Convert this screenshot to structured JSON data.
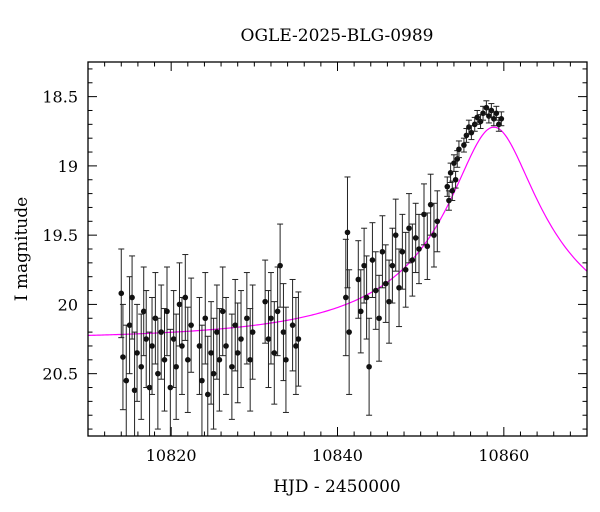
{
  "chart_data": {
    "type": "scatter",
    "title": "OGLE-2025-BLG-0989",
    "xlabel": "HJD - 2450000",
    "ylabel": "I magnitude",
    "xlim": [
      10810,
      10870
    ],
    "ylim": [
      18.25,
      20.95
    ],
    "y_inverted": true,
    "grid": false,
    "x_ticks": [
      10820,
      10840,
      10860
    ],
    "x_tick_labels": [
      "10820",
      "10840",
      "10860"
    ],
    "y_ticks": [
      18.5,
      19,
      19.5,
      20,
      20.5
    ],
    "y_tick_labels": [
      "18.5",
      "19",
      "19.5",
      "20",
      "20.5"
    ],
    "colors": {
      "points": "#111111",
      "model": "#ff00ff",
      "axes": "#000000"
    },
    "series": [
      {
        "kind": "points_with_errorbars",
        "points": [
          {
            "x": 10814.0,
            "y": 19.92,
            "err": 0.32
          },
          {
            "x": 10814.2,
            "y": 20.38,
            "err": 0.38
          },
          {
            "x": 10814.6,
            "y": 20.55,
            "err": 0.4
          },
          {
            "x": 10815.0,
            "y": 20.15,
            "err": 0.35
          },
          {
            "x": 10815.3,
            "y": 19.95,
            "err": 0.3
          },
          {
            "x": 10815.6,
            "y": 20.62,
            "err": 0.42
          },
          {
            "x": 10815.9,
            "y": 20.35,
            "err": 0.35
          },
          {
            "x": 10816.4,
            "y": 20.45,
            "err": 0.38
          },
          {
            "x": 10816.7,
            "y": 20.05,
            "err": 0.32
          },
          {
            "x": 10817.0,
            "y": 20.25,
            "err": 0.35
          },
          {
            "x": 10817.4,
            "y": 20.6,
            "err": 0.4
          },
          {
            "x": 10817.7,
            "y": 20.3,
            "err": 0.35
          },
          {
            "x": 10818.1,
            "y": 20.1,
            "err": 0.33
          },
          {
            "x": 10818.4,
            "y": 20.5,
            "err": 0.4
          },
          {
            "x": 10818.8,
            "y": 20.2,
            "err": 0.34
          },
          {
            "x": 10819.2,
            "y": 20.4,
            "err": 0.37
          },
          {
            "x": 10819.5,
            "y": 20.05,
            "err": 0.32
          },
          {
            "x": 10819.9,
            "y": 20.6,
            "err": 0.42
          },
          {
            "x": 10820.3,
            "y": 20.25,
            "err": 0.35
          },
          {
            "x": 10820.6,
            "y": 20.45,
            "err": 0.38
          },
          {
            "x": 10821.0,
            "y": 20.0,
            "err": 0.3
          },
          {
            "x": 10821.3,
            "y": 20.3,
            "err": 0.35
          },
          {
            "x": 10821.7,
            "y": 19.95,
            "err": 0.31
          },
          {
            "x": 10822.0,
            "y": 20.4,
            "err": 0.38
          },
          {
            "x": 10822.4,
            "y": 20.15,
            "err": 0.34
          },
          {
            "x": 10823.4,
            "y": 20.3,
            "err": 0.35
          },
          {
            "x": 10823.7,
            "y": 20.55,
            "err": 0.4
          },
          {
            "x": 10824.1,
            "y": 20.1,
            "err": 0.33
          },
          {
            "x": 10824.4,
            "y": 20.65,
            "err": 0.42
          },
          {
            "x": 10824.8,
            "y": 20.35,
            "err": 0.37
          },
          {
            "x": 10825.1,
            "y": 20.5,
            "err": 0.4
          },
          {
            "x": 10825.5,
            "y": 20.2,
            "err": 0.34
          },
          {
            "x": 10825.8,
            "y": 20.4,
            "err": 0.37
          },
          {
            "x": 10826.2,
            "y": 20.05,
            "err": 0.32
          },
          {
            "x": 10826.6,
            "y": 20.3,
            "err": 0.35
          },
          {
            "x": 10827.3,
            "y": 20.45,
            "err": 0.38
          },
          {
            "x": 10827.7,
            "y": 20.15,
            "err": 0.33
          },
          {
            "x": 10828.0,
            "y": 20.35,
            "err": 0.36
          },
          {
            "x": 10828.4,
            "y": 20.25,
            "err": 0.35
          },
          {
            "x": 10829.1,
            "y": 20.1,
            "err": 0.33
          },
          {
            "x": 10829.5,
            "y": 20.4,
            "err": 0.37
          },
          {
            "x": 10829.8,
            "y": 20.2,
            "err": 0.34
          },
          {
            "x": 10831.3,
            "y": 19.98,
            "err": 0.3
          },
          {
            "x": 10831.7,
            "y": 20.25,
            "err": 0.35
          },
          {
            "x": 10832.0,
            "y": 20.1,
            "err": 0.33
          },
          {
            "x": 10832.4,
            "y": 20.35,
            "err": 0.37
          },
          {
            "x": 10832.8,
            "y": 20.05,
            "err": 0.32
          },
          {
            "x": 10833.1,
            "y": 19.72,
            "err": 0.3
          },
          {
            "x": 10833.5,
            "y": 20.2,
            "err": 0.35
          },
          {
            "x": 10833.8,
            "y": 20.4,
            "err": 0.38
          },
          {
            "x": 10834.6,
            "y": 20.15,
            "err": 0.33
          },
          {
            "x": 10835.0,
            "y": 20.3,
            "err": 0.35
          },
          {
            "x": 10835.3,
            "y": 20.25,
            "err": 0.34
          },
          {
            "x": 10841.0,
            "y": 19.95,
            "err": 0.42
          },
          {
            "x": 10841.2,
            "y": 19.48,
            "err": 0.4
          },
          {
            "x": 10841.4,
            "y": 20.2,
            "err": 0.45
          },
          {
            "x": 10842.5,
            "y": 19.82,
            "err": 0.28
          },
          {
            "x": 10842.8,
            "y": 20.05,
            "err": 0.3
          },
          {
            "x": 10843.2,
            "y": 19.72,
            "err": 0.27
          },
          {
            "x": 10843.5,
            "y": 19.95,
            "err": 0.3
          },
          {
            "x": 10843.8,
            "y": 20.45,
            "err": 0.35
          },
          {
            "x": 10844.2,
            "y": 19.68,
            "err": 0.27
          },
          {
            "x": 10844.6,
            "y": 19.9,
            "err": 0.28
          },
          {
            "x": 10845.0,
            "y": 20.1,
            "err": 0.31
          },
          {
            "x": 10845.4,
            "y": 19.62,
            "err": 0.26
          },
          {
            "x": 10845.8,
            "y": 19.85,
            "err": 0.28
          },
          {
            "x": 10846.2,
            "y": 19.98,
            "err": 0.3
          },
          {
            "x": 10846.6,
            "y": 19.72,
            "err": 0.27
          },
          {
            "x": 10847.0,
            "y": 19.5,
            "err": 0.26
          },
          {
            "x": 10847.4,
            "y": 19.88,
            "err": 0.28
          },
          {
            "x": 10847.8,
            "y": 19.62,
            "err": 0.27
          },
          {
            "x": 10848.2,
            "y": 19.75,
            "err": 0.27
          },
          {
            "x": 10848.6,
            "y": 19.45,
            "err": 0.25
          },
          {
            "x": 10849.0,
            "y": 19.68,
            "err": 0.26
          },
          {
            "x": 10849.4,
            "y": 19.52,
            "err": 0.25
          },
          {
            "x": 10849.8,
            "y": 19.6,
            "err": 0.25
          },
          {
            "x": 10850.4,
            "y": 19.35,
            "err": 0.22
          },
          {
            "x": 10850.8,
            "y": 19.58,
            "err": 0.24
          },
          {
            "x": 10851.2,
            "y": 19.28,
            "err": 0.22
          },
          {
            "x": 10851.6,
            "y": 19.5,
            "err": 0.23
          },
          {
            "x": 10852.0,
            "y": 19.4,
            "err": 0.22
          },
          {
            "x": 10853.2,
            "y": 19.15,
            "err": 0.07
          },
          {
            "x": 10853.4,
            "y": 19.25,
            "err": 0.07
          },
          {
            "x": 10853.6,
            "y": 19.05,
            "err": 0.07
          },
          {
            "x": 10853.8,
            "y": 19.18,
            "err": 0.07
          },
          {
            "x": 10854.0,
            "y": 18.98,
            "err": 0.06
          },
          {
            "x": 10854.2,
            "y": 19.1,
            "err": 0.06
          },
          {
            "x": 10854.4,
            "y": 18.95,
            "err": 0.06
          },
          {
            "x": 10854.6,
            "y": 18.88,
            "err": 0.06
          },
          {
            "x": 10855.2,
            "y": 18.85,
            "err": 0.05
          },
          {
            "x": 10855.5,
            "y": 18.78,
            "err": 0.05
          },
          {
            "x": 10855.8,
            "y": 18.72,
            "err": 0.05
          },
          {
            "x": 10856.1,
            "y": 18.76,
            "err": 0.05
          },
          {
            "x": 10856.5,
            "y": 18.7,
            "err": 0.05
          },
          {
            "x": 10856.8,
            "y": 18.65,
            "err": 0.05
          },
          {
            "x": 10857.2,
            "y": 18.68,
            "err": 0.05
          },
          {
            "x": 10857.5,
            "y": 18.62,
            "err": 0.05
          },
          {
            "x": 10857.9,
            "y": 18.58,
            "err": 0.05
          },
          {
            "x": 10858.2,
            "y": 18.64,
            "err": 0.05
          },
          {
            "x": 10858.5,
            "y": 18.6,
            "err": 0.05
          },
          {
            "x": 10858.8,
            "y": 18.66,
            "err": 0.05
          },
          {
            "x": 10859.1,
            "y": 18.62,
            "err": 0.05
          },
          {
            "x": 10859.4,
            "y": 18.7,
            "err": 0.05
          },
          {
            "x": 10859.7,
            "y": 18.66,
            "err": 0.05
          }
        ]
      },
      {
        "kind": "model_curve",
        "baseline_mag": 20.25,
        "peak_mag": 18.72,
        "t0": 10858.8,
        "tE": 25,
        "u0": 0.215
      }
    ]
  }
}
